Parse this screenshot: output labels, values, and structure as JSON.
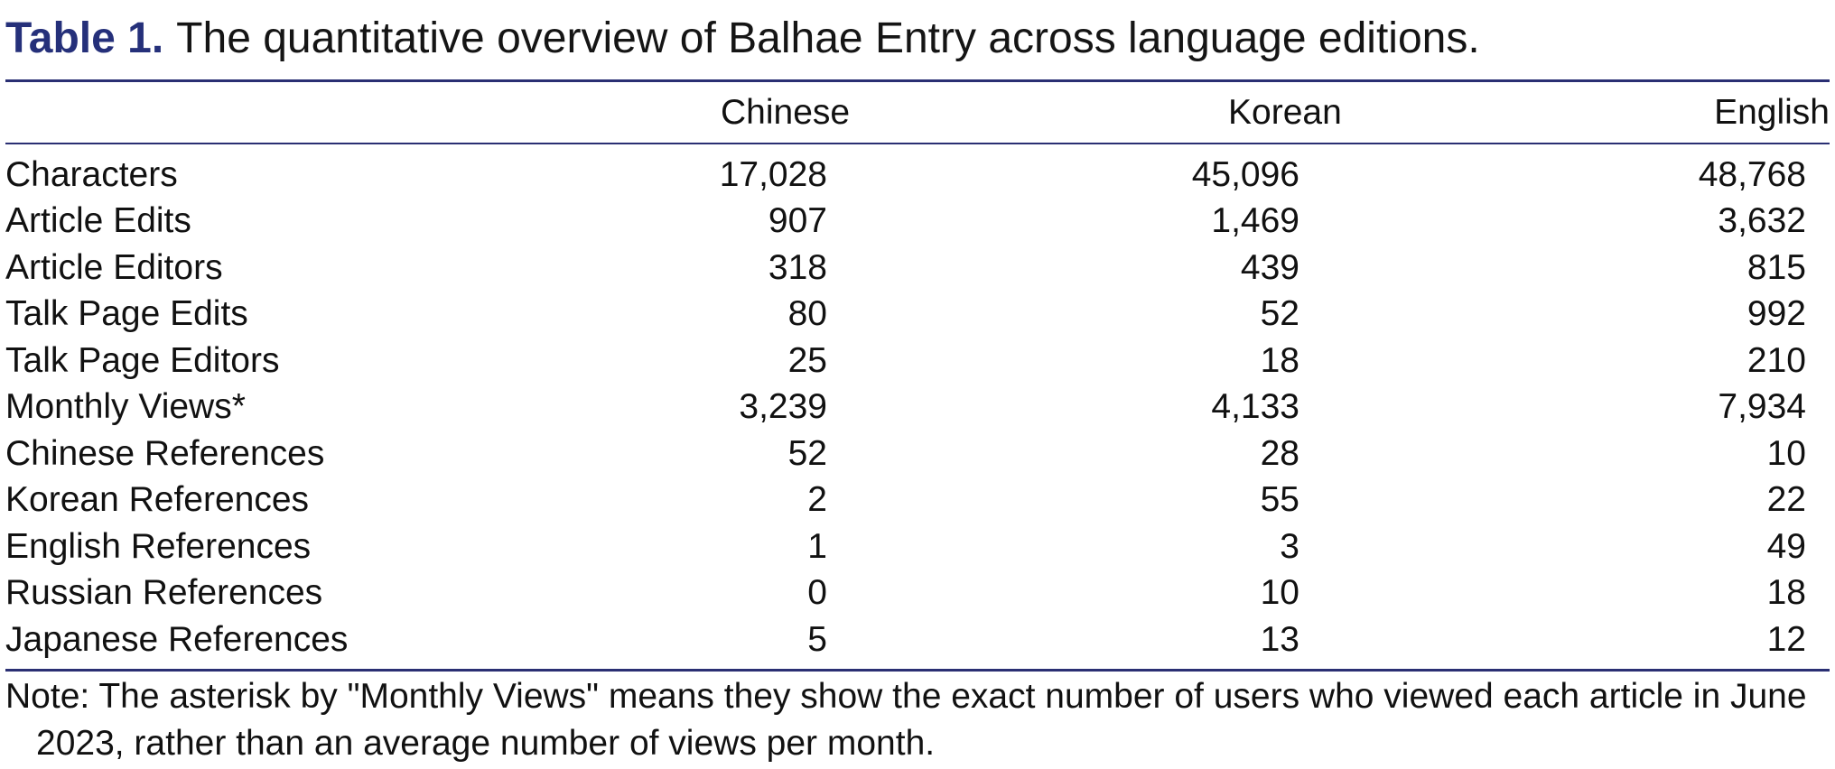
{
  "caption": {
    "label": "Table 1.",
    "text": "The quantitative overview of Balhae Entry across language editions."
  },
  "table": {
    "columns": [
      "",
      "Chinese",
      "Korean",
      "English"
    ],
    "rows": [
      {
        "label": "Characters",
        "chinese": "17,028",
        "korean": "45,096",
        "english": "48,768"
      },
      {
        "label": "Article Edits",
        "chinese": "907",
        "korean": "1,469",
        "english": "3,632"
      },
      {
        "label": "Article Editors",
        "chinese": "318",
        "korean": "439",
        "english": "815"
      },
      {
        "label": "Talk Page Edits",
        "chinese": "80",
        "korean": "52",
        "english": "992"
      },
      {
        "label": "Talk Page Editors",
        "chinese": "25",
        "korean": "18",
        "english": "210"
      },
      {
        "label": "Monthly Views*",
        "chinese": "3,239",
        "korean": "4,133",
        "english": "7,934"
      },
      {
        "label": "Chinese References",
        "chinese": "52",
        "korean": "28",
        "english": "10"
      },
      {
        "label": "Korean References",
        "chinese": "2",
        "korean": "55",
        "english": "22"
      },
      {
        "label": "English References",
        "chinese": "1",
        "korean": "3",
        "english": "49"
      },
      {
        "label": "Russian References",
        "chinese": "0",
        "korean": "10",
        "english": "18"
      },
      {
        "label": "Japanese References",
        "chinese": "5",
        "korean": "13",
        "english": "12"
      }
    ]
  },
  "note": {
    "line1": "Note: The asterisk by \"Monthly Views\" means they show the exact number of users who viewed each article in June",
    "line2": "2023, rather than an average number of views per month."
  },
  "colors": {
    "rule": "#2a2f73",
    "caption_label": "#25307a",
    "text": "#111111"
  }
}
